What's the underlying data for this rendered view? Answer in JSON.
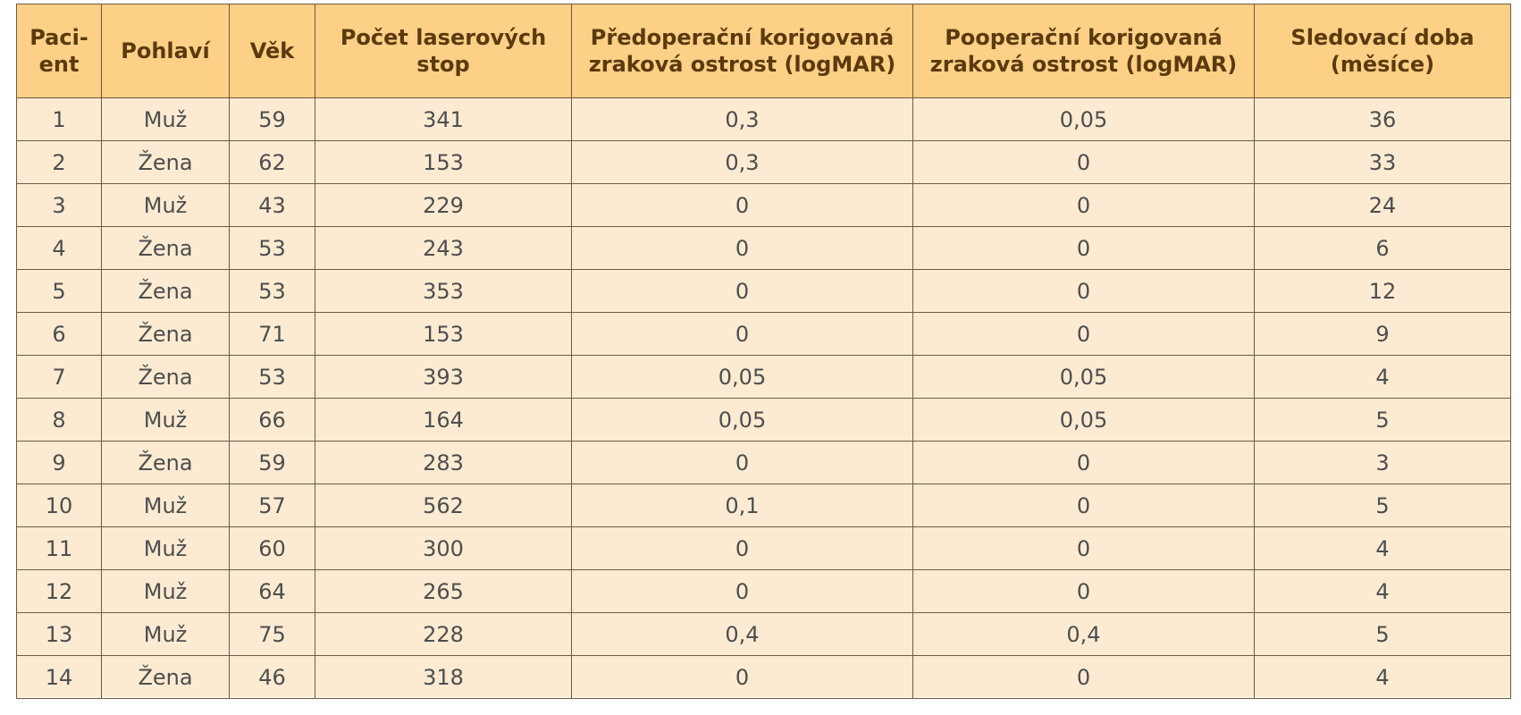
{
  "table": {
    "headers": [
      "Paci-\nent",
      "Pohlaví",
      "Věk",
      "Počet laserových stop",
      "Předoperační korigovaná zraková ostrost (logMAR)",
      "Pooperační korigovaná zraková ostrost (logMAR)",
      "Sledovací doba (měsíce)"
    ],
    "rows": [
      [
        "1",
        "Muž",
        "59",
        "341",
        "0,3",
        "0,05",
        "36"
      ],
      [
        "2",
        "Žena",
        "62",
        "153",
        "0,3",
        "0",
        "33"
      ],
      [
        "3",
        "Muž",
        "43",
        "229",
        "0",
        "0",
        "24"
      ],
      [
        "4",
        "Žena",
        "53",
        "243",
        "0",
        "0",
        "6"
      ],
      [
        "5",
        "Žena",
        "53",
        "353",
        "0",
        "0",
        "12"
      ],
      [
        "6",
        "Žena",
        "71",
        "153",
        "0",
        "0",
        "9"
      ],
      [
        "7",
        "Žena",
        "53",
        "393",
        "0,05",
        "0,05",
        "4"
      ],
      [
        "8",
        "Muž",
        "66",
        "164",
        "0,05",
        "0,05",
        "5"
      ],
      [
        "9",
        "Žena",
        "59",
        "283",
        "0",
        "0",
        "3"
      ],
      [
        "10",
        "Muž",
        "57",
        "562",
        "0,1",
        "0",
        "5"
      ],
      [
        "11",
        "Muž",
        "60",
        "300",
        "0",
        "0",
        "4"
      ],
      [
        "12",
        "Muž",
        "64",
        "265",
        "0",
        "0",
        "4"
      ],
      [
        "13",
        "Muž",
        "75",
        "228",
        "0,4",
        "0,4",
        "5"
      ],
      [
        "14",
        "Žena",
        "46",
        "318",
        "0",
        "0",
        "4"
      ]
    ]
  },
  "colors": {
    "header_bg": "#fcd086",
    "header_text": "#5b3a0e",
    "body_bg": "#fcebd2",
    "body_text": "#4e4e4e",
    "border": "#6d5a44"
  }
}
